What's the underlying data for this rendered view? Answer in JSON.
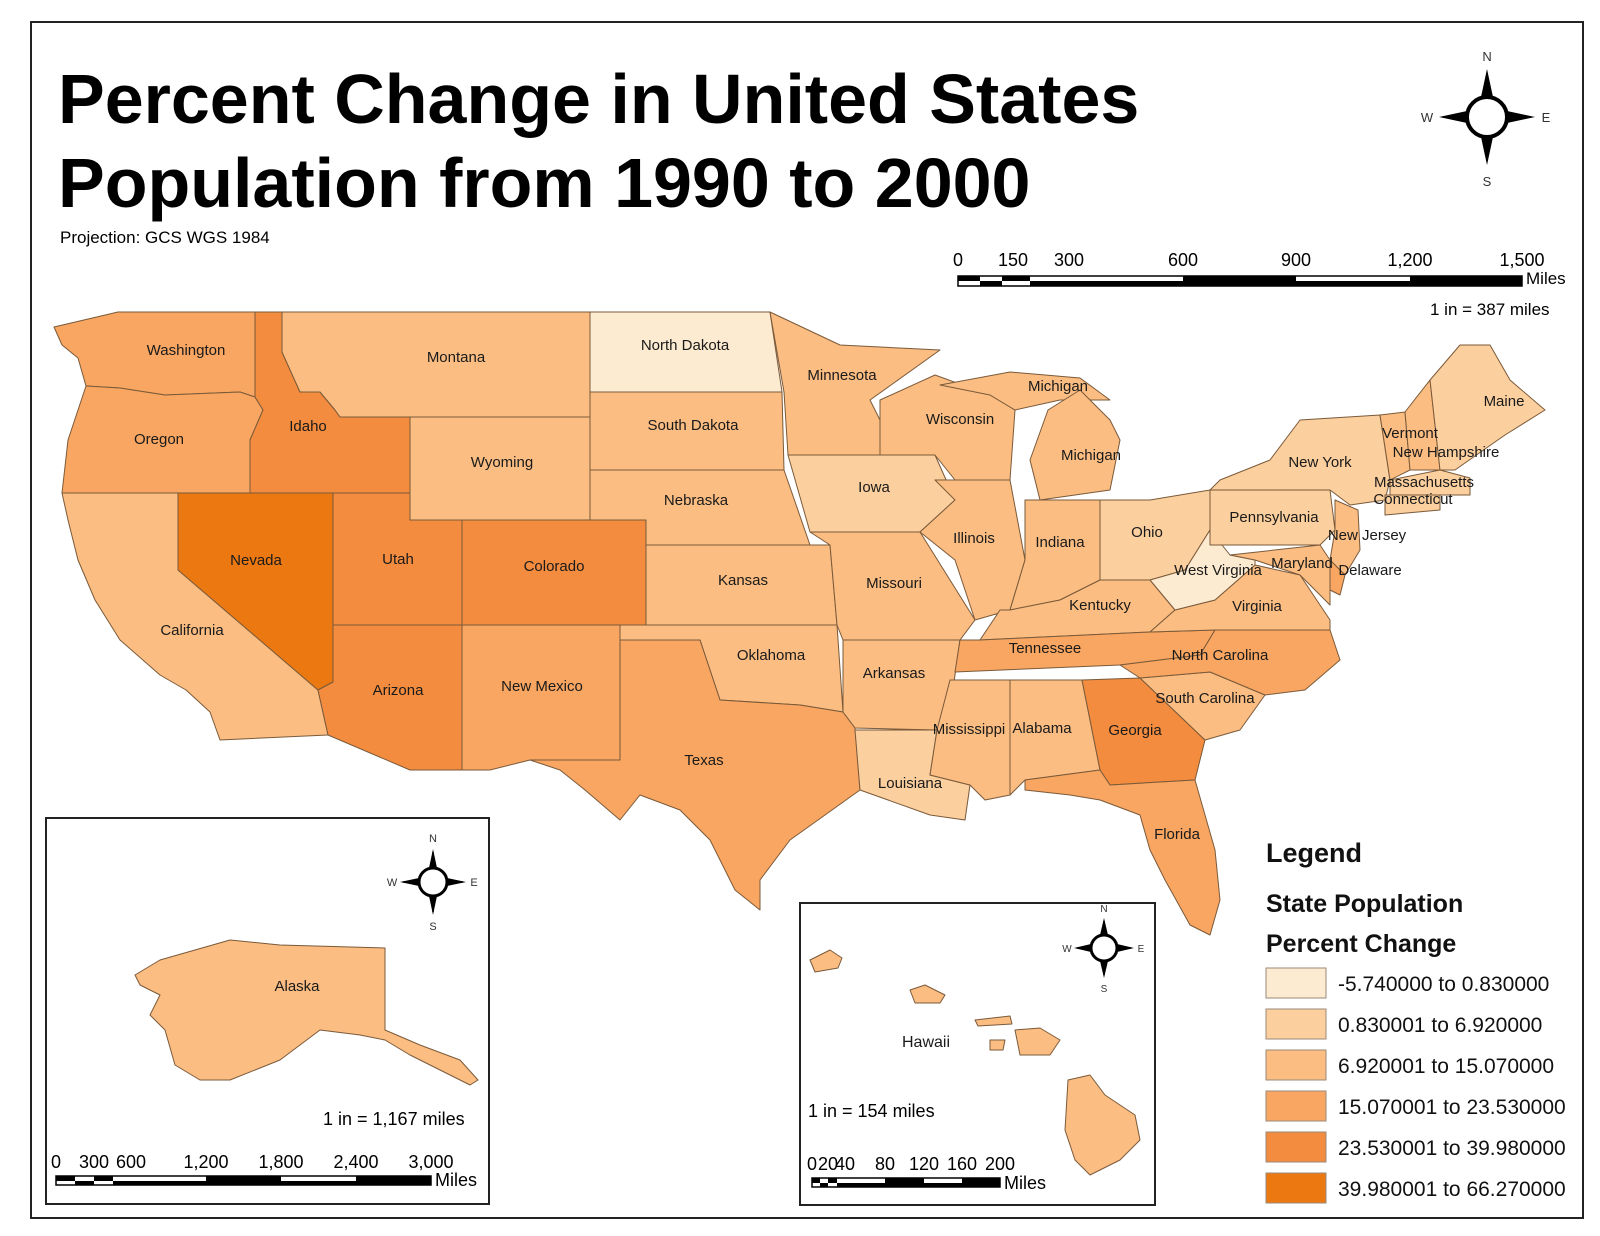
{
  "title_line1": "Percent Change in United States",
  "title_line2": "Population from 1990 to 2000",
  "projection": "Projection: GCS WGS 1984",
  "compass": {
    "n": "N",
    "s": "S",
    "e": "E",
    "w": "W"
  },
  "main_scale": {
    "ticks": [
      "0",
      "150",
      "300",
      "600",
      "900",
      "1,200",
      "1,500"
    ],
    "unit": "Miles",
    "ratio": "1 in = 387 miles"
  },
  "alaska": {
    "label": "Alaska",
    "ratio": "1 in = 1,167 miles",
    "ticks": [
      "0",
      "300",
      "600",
      "1,200",
      "1,800",
      "2,400",
      "3,000"
    ],
    "unit": "Miles"
  },
  "hawaii": {
    "label": "Hawaii",
    "ratio": "1 in = 154 miles",
    "ticks": [
      "0",
      "20",
      "40",
      "80",
      "120",
      "160",
      "200"
    ],
    "unit": "Miles"
  },
  "legend": {
    "title": "Legend",
    "subtitle1": "State Population",
    "subtitle2": "Percent Change",
    "classes": [
      {
        "label": "-5.740000 to 0.830000",
        "color": "#fdebd1"
      },
      {
        "label": "0.830001 to 6.920000",
        "color": "#fccf9e"
      },
      {
        "label": "6.920001 to 15.070000",
        "color": "#fbbd82"
      },
      {
        "label": "15.070001 to 23.530000",
        "color": "#f8a661"
      },
      {
        "label": "23.530001 to 39.980000",
        "color": "#f38c3e"
      },
      {
        "label": "39.980001 to 66.270000",
        "color": "#ec7812"
      }
    ]
  },
  "states": {
    "washington": {
      "name": "Washington",
      "class": 3
    },
    "oregon": {
      "name": "Oregon",
      "class": 3
    },
    "california": {
      "name": "California",
      "class": 2
    },
    "idaho": {
      "name": "Idaho",
      "class": 4
    },
    "nevada": {
      "name": "Nevada",
      "class": 5
    },
    "montana": {
      "name": "Montana",
      "class": 2
    },
    "wyoming": {
      "name": "Wyoming",
      "class": 2
    },
    "utah": {
      "name": "Utah",
      "class": 4
    },
    "arizona": {
      "name": "Arizona",
      "class": 4
    },
    "colorado": {
      "name": "Colorado",
      "class": 4
    },
    "newmexico": {
      "name": "New Mexico",
      "class": 3
    },
    "northdakota": {
      "name": "North Dakota",
      "class": 0
    },
    "southdakota": {
      "name": "South Dakota",
      "class": 2
    },
    "nebraska": {
      "name": "Nebraska",
      "class": 2
    },
    "kansas": {
      "name": "Kansas",
      "class": 2
    },
    "oklahoma": {
      "name": "Oklahoma",
      "class": 2
    },
    "texas": {
      "name": "Texas",
      "class": 3
    },
    "minnesota": {
      "name": "Minnesota",
      "class": 2
    },
    "iowa": {
      "name": "Iowa",
      "class": 1
    },
    "missouri": {
      "name": "Missouri",
      "class": 2
    },
    "arkansas": {
      "name": "Arkansas",
      "class": 2
    },
    "louisiana": {
      "name": "Louisiana",
      "class": 1
    },
    "wisconsin": {
      "name": "Wisconsin",
      "class": 2
    },
    "michigan_up": {
      "name": "Michigan",
      "class": 2
    },
    "michigan": {
      "name": "Michigan",
      "class": 2
    },
    "illinois": {
      "name": "Illinois",
      "class": 2
    },
    "indiana": {
      "name": "Indiana",
      "class": 2
    },
    "ohio": {
      "name": "Ohio",
      "class": 1
    },
    "kentucky": {
      "name": "Kentucky",
      "class": 2
    },
    "tennessee": {
      "name": "Tennessee",
      "class": 3
    },
    "mississippi": {
      "name": "Mississippi",
      "class": 2
    },
    "alabama": {
      "name": "Alabama",
      "class": 2
    },
    "georgia": {
      "name": "Georgia",
      "class": 4
    },
    "florida": {
      "name": "Florida",
      "class": 3
    },
    "southcarolina": {
      "name": "South Carolina",
      "class": 2
    },
    "northcarolina": {
      "name": "North Carolina",
      "class": 3
    },
    "virginia": {
      "name": "Virginia",
      "class": 2
    },
    "westvirginia": {
      "name": "West Virginia",
      "class": 0
    },
    "pennsylvania": {
      "name": "Pennsylvania",
      "class": 1
    },
    "newyork": {
      "name": "New York",
      "class": 1
    },
    "newjersey": {
      "name": "New Jersey",
      "class": 2
    },
    "maryland": {
      "name": "Maryland",
      "class": 2
    },
    "delaware": {
      "name": "Delaware",
      "class": 3
    },
    "vermont": {
      "name": "Vermont",
      "class": 2
    },
    "newhampshire": {
      "name": "New Hampshire",
      "class": 2
    },
    "maine": {
      "name": "Maine",
      "class": 1
    },
    "massachusetts": {
      "name": "Massachusetts",
      "class": 1
    },
    "connecticut": {
      "name": "Connecticut",
      "class": 1
    },
    "alaska": {
      "name": "Alaska",
      "class": 2
    },
    "hawaii": {
      "name": "Hawaii",
      "class": 2
    }
  }
}
